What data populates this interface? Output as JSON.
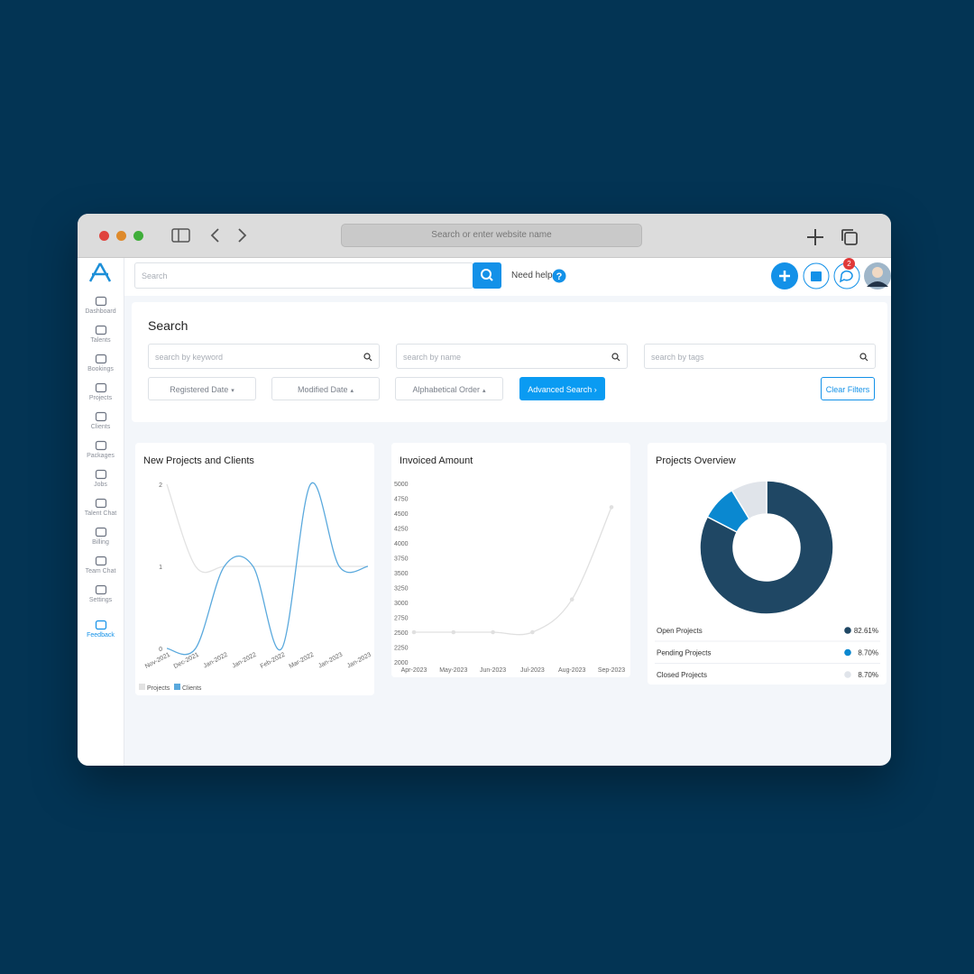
{
  "browser": {
    "address_placeholder": "Search or enter website name"
  },
  "sidebar": {
    "items": [
      "Dashboard",
      "Talents",
      "Bookings",
      "Projects",
      "Clients",
      "Packages",
      "Jobs",
      "Talent Chat",
      "Billing",
      "Team Chat",
      "Settings",
      "Feedback"
    ]
  },
  "topbar": {
    "search_placeholder": "Search",
    "help": "Need help",
    "notifications": 2
  },
  "search_panel": {
    "title": "Search",
    "fields": [
      "search by keyword",
      "search by name",
      "search by tags"
    ],
    "sort_buttons": [
      "Registered Date",
      "Modified Date",
      "Alphabetical Order"
    ],
    "advanced": "Advanced Search",
    "clear": "Clear Filters"
  },
  "chart_data": [
    {
      "type": "line",
      "title": "New Projects and Clients",
      "categories": [
        "Nov-2021",
        "Dec-2021",
        "Jan-2022",
        "Jan-2022",
        "Feb-2022",
        "Mar-2022",
        "Jan-2023",
        "Jan-2023"
      ],
      "series": [
        {
          "name": "Projects",
          "color": "#e2e2e2",
          "values": [
            2,
            1,
            1,
            1,
            1,
            1,
            1,
            1
          ]
        },
        {
          "name": "Clients",
          "color": "#5aa9dd",
          "values": [
            0,
            0,
            1,
            1,
            0,
            2,
            1,
            1
          ]
        }
      ],
      "ylim": [
        0,
        2
      ],
      "yticks": [
        0,
        1,
        2
      ],
      "legend": "bottom-left"
    },
    {
      "type": "line",
      "title": "Invoiced Amount",
      "categories": [
        "Apr-2023",
        "May-2023",
        "Jun-2023",
        "Jul-2023",
        "Aug-2023",
        "Sep-2023"
      ],
      "series": [
        {
          "name": "Invoiced",
          "color": "#e0e0e0",
          "values": [
            2500,
            2500,
            2500,
            2500,
            3050,
            4600
          ]
        }
      ],
      "ylim": [
        2000,
        5000
      ],
      "yticks": [
        2000,
        2250,
        2500,
        2750,
        3000,
        3250,
        3500,
        3750,
        4000,
        4250,
        4500,
        4750,
        5000
      ],
      "markers": true
    },
    {
      "type": "pie",
      "title": "Projects Overview",
      "categories": [
        "Open Projects",
        "Pending Projects",
        "Closed Projects"
      ],
      "values": [
        82.61,
        8.7,
        8.7
      ],
      "value_labels": [
        "82.61%",
        "8.70%",
        "8.70%"
      ],
      "colors": [
        "#1f4764",
        "#0a88d0",
        "#e0e4ea"
      ],
      "donut": true
    }
  ]
}
